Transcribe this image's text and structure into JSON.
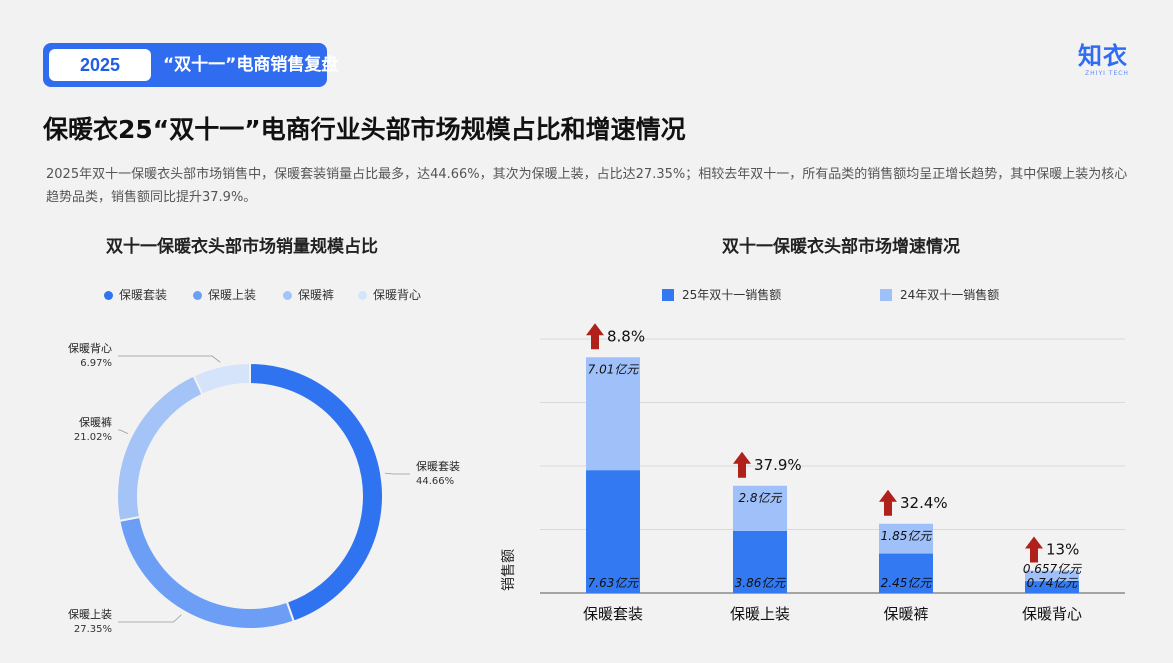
{
  "header": {
    "year_tag": "2025",
    "tag_title": "“双十一”电商销售复盘",
    "logo_text": "知衣",
    "logo_sub": "ZHIYI TECH"
  },
  "page": {
    "title": "保暖衣25“双十一”电商行业头部市场规模占比和增速情况",
    "description": "2025年双十一保暖衣头部市场销售中，保暖套装销量占比最多，达44.66%，其次为保暖上装，占比达27.35%；相较去年双十一，所有品类的销售额均呈正增长趋势，其中保暖上装为核心趋势品类，销售额同比提升37.9%。"
  },
  "colors": {
    "brand": "#2f6cf0",
    "series_25": "#3379f2",
    "series_24": "#9fc0f8",
    "arrow": "#b0211b",
    "pie": [
      "#2f73f0",
      "#6b9ef4",
      "#a4c3f7",
      "#d6e4fb"
    ]
  },
  "chart_data": [
    {
      "type": "pie",
      "title": "双十一保暖衣头部市场销量规模占比",
      "legend_position": "top",
      "labels": [
        "保暖套装",
        "保暖上装",
        "保暖裤",
        "保暖背心"
      ],
      "values": [
        44.66,
        27.35,
        21.02,
        6.97
      ],
      "value_labels": [
        "44.66%",
        "27.35%",
        "21.02%",
        "6.97%"
      ]
    },
    {
      "type": "bar",
      "stacked": true,
      "title": "双十一保暖衣头部市场增速情况",
      "ylabel": "销售额",
      "legend_position": "top",
      "categories": [
        "保暖套装",
        "保暖上装",
        "保暖裤",
        "保暖背心"
      ],
      "series": [
        {
          "name": "25年双十一销售额",
          "values": [
            7.63,
            3.86,
            2.45,
            0.74
          ],
          "labels": [
            "7.63亿元",
            "3.86亿元",
            "2.45亿元",
            "0.74亿元"
          ]
        },
        {
          "name": "24年双十一销售额",
          "values": [
            7.01,
            2.8,
            1.85,
            0.657
          ],
          "labels": [
            "7.01亿元",
            "2.8亿元",
            "1.85亿元",
            "0.657亿元"
          ]
        }
      ],
      "growth": [
        "8.8%",
        "37.9%",
        "32.4%",
        "13%"
      ],
      "grid": true
    }
  ]
}
